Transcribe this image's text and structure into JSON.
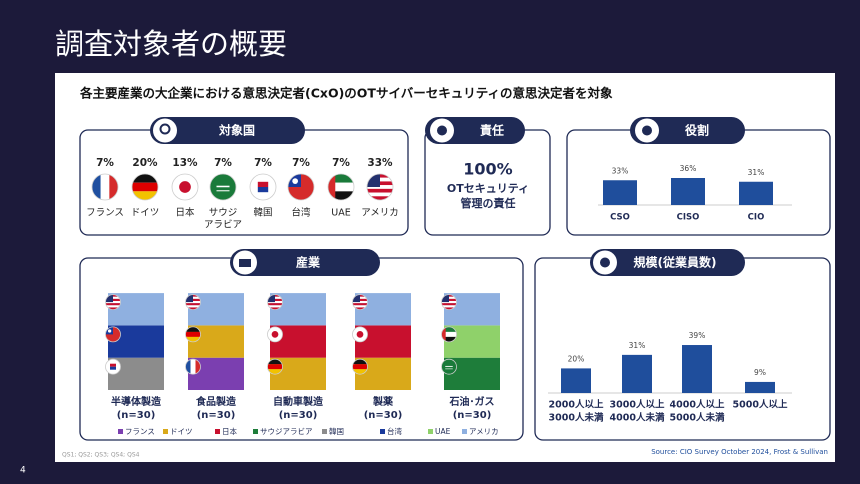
{
  "title": "調査対象者の概要",
  "subtitle": "各主要産業の大企業における意思決定者(CxO)のOTサイバーセキュリティの意思決定者を対象",
  "countries": {
    "heading": "対象国",
    "items": [
      {
        "value": 7,
        "value_label": "7%",
        "label": [
          "フランス"
        ]
      },
      {
        "value": 20,
        "value_label": "20%",
        "label": [
          "ドイツ"
        ]
      },
      {
        "value": 13,
        "value_label": "13%",
        "label": [
          "日本"
        ]
      },
      {
        "value": 7,
        "value_label": "7%",
        "label": [
          "サウジ",
          "アラビア"
        ]
      },
      {
        "value": 7,
        "value_label": "7%",
        "label": [
          "韓国"
        ]
      },
      {
        "value": 7,
        "value_label": "7%",
        "label": [
          "台湾"
        ]
      },
      {
        "value": 7,
        "value_label": "7%",
        "label": [
          "UAE"
        ]
      },
      {
        "value": 33,
        "value_label": "33%",
        "label": [
          "アメリカ"
        ]
      }
    ]
  },
  "responsibility": {
    "heading": "責任",
    "value": 100,
    "value_label": "100%",
    "text": [
      "OTセキュリティ",
      "管理の責任"
    ]
  },
  "roles": {
    "type": "bar",
    "heading": "役割",
    "categories": [
      "CSO",
      "CISO",
      "CIO"
    ],
    "values": [
      33,
      36,
      31
    ],
    "value_labels": [
      "33%",
      "36%",
      "31%"
    ],
    "color": "#1f4e9c"
  },
  "industry": {
    "type": "stacked_bar",
    "heading": "産業",
    "categories": [
      "半導体製造",
      "食品製造",
      "自動車製造",
      "製薬",
      "石油･ガス"
    ],
    "samples": [
      "(n=30)",
      "(n=30)",
      "(n=30)",
      "(n=30)",
      "(n=30)"
    ],
    "series": [
      {
        "name": "フランス",
        "color": "#7b3fb0",
        "values": [
          null,
          33.3,
          null,
          null,
          null
        ]
      },
      {
        "name": "ドイツ",
        "color": "#d9a91a",
        "values": [
          null,
          33.3,
          33.3,
          33.3,
          null
        ]
      },
      {
        "name": "日本",
        "color": "#c8102e",
        "values": [
          null,
          null,
          33.3,
          33.3,
          null
        ]
      },
      {
        "name": "サウジアラビア",
        "color": "#1e7d3a",
        "values": [
          null,
          null,
          null,
          null,
          33.3
        ]
      },
      {
        "name": "韓国",
        "color": "#8c8c8c",
        "values": [
          33.3,
          null,
          null,
          null,
          null
        ]
      },
      {
        "name": "台湾",
        "color": "#1a3a9c",
        "values": [
          33.3,
          null,
          null,
          null,
          null
        ]
      },
      {
        "name": "UAE",
        "color": "#8fd16a",
        "values": [
          null,
          null,
          null,
          null,
          33.3
        ]
      },
      {
        "name": "アメリカ",
        "color": "#8fb0e0",
        "values": [
          33.3,
          33.3,
          33.3,
          33.3,
          33.3
        ]
      }
    ]
  },
  "size": {
    "type": "bar",
    "heading": "規模(従業員数)",
    "categories": [
      [
        "2000人以上",
        "3000人未満"
      ],
      [
        "3000人以上",
        "4000人未満"
      ],
      [
        "4000人以上",
        "5000人未満"
      ],
      [
        "5000人以上"
      ]
    ],
    "values": [
      20,
      31,
      39,
      9
    ],
    "value_labels": [
      "20%",
      "31%",
      "39%",
      "9%"
    ],
    "color": "#1f4e9c"
  },
  "footnote": "QS1; QS2; QS3; QS4; QS4",
  "source": "Source: CIO Survey October 2024, Frost & Sullivan",
  "page": "4"
}
